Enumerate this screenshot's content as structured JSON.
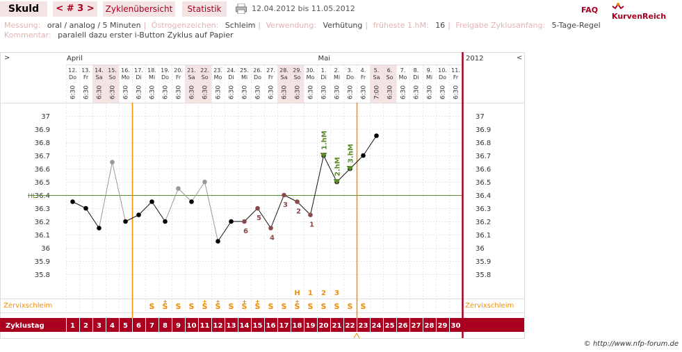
{
  "header": {
    "name": "Skuld",
    "cycle_nav": "< # 3 >",
    "tab_overview": "Zyklenübersicht",
    "tab_stats": "Statistik",
    "date_range": "12.04.2012 bis 11.05.2012",
    "faq": "FAQ",
    "brand": "KurvenReich"
  },
  "info": {
    "messung_label": "Messung:",
    "messung_value": "oral / analog / 5 Minuten",
    "oestrogen_label": "Östrogenzeichen:",
    "oestrogen_value": "Schleim",
    "verwendung_label": "Verwendung:",
    "verwendung_value": "Verhütung",
    "fruehste_label": "früheste 1.hM:",
    "fruehste_value": "16",
    "freigabe_label": "Freigabe Zyklusanfang:",
    "freigabe_value": "5-Tage-Regel",
    "kommentar_label": "Kommentar:",
    "kommentar_value": "paralell dazu erster i-Button Zyklus auf Papier"
  },
  "colors": {
    "accent": "#a8001e",
    "orange": "#f08c00",
    "green": "#5a8a2a",
    "weekend_bg": "#f4e3e3",
    "point_black": "#000000",
    "point_gray": "#999999",
    "point_maroon": "#8a4a4a"
  },
  "chart_data": {
    "type": "line",
    "nav_left": ">",
    "nav_right": "<",
    "month_labels": [
      "April",
      "Mai"
    ],
    "year_label": "2012",
    "dates": [
      "12.",
      "13.",
      "14.",
      "15.",
      "16.",
      "17.",
      "18.",
      "19.",
      "20.",
      "21.",
      "22.",
      "23.",
      "24.",
      "25.",
      "26.",
      "27.",
      "28.",
      "29.",
      "30.",
      "1.",
      "2.",
      "3.",
      "4.",
      "5.",
      "6.",
      "7.",
      "8.",
      "9.",
      "10.",
      "11."
    ],
    "weekdays": [
      "Do",
      "Fr",
      "Sa",
      "So",
      "Mo",
      "Di",
      "Mi",
      "Do",
      "Fr",
      "Sa",
      "So",
      "Mo",
      "Di",
      "Mi",
      "Do",
      "Fr",
      "Sa",
      "So",
      "Mo",
      "Di",
      "Mi",
      "Do",
      "Fr",
      "Sa",
      "So",
      "Mo",
      "Di",
      "Mi",
      "Do",
      "Fr"
    ],
    "weekend": [
      false,
      false,
      true,
      true,
      false,
      false,
      false,
      false,
      false,
      true,
      true,
      false,
      false,
      false,
      false,
      false,
      true,
      true,
      false,
      false,
      false,
      false,
      false,
      true,
      true,
      false,
      false,
      false,
      false,
      false
    ],
    "times": [
      "6:30",
      "6:30",
      "6:30",
      "6:30",
      "6:30",
      "6:30",
      "6:30",
      "6:30",
      "6:30",
      "6:30",
      "6:30",
      "6:30",
      "6:30",
      "6:30",
      "6:30",
      "6:30",
      "6:30",
      "6:30",
      "6:30",
      "6:30",
      "6:30",
      "6:30",
      "6:30",
      "7:00",
      "6:30",
      "6:30",
      "6:30",
      "6:30",
      "6:30",
      "6:30"
    ],
    "cycle_days": [
      "1",
      "2",
      "3",
      "4",
      "5",
      "6",
      "7",
      "8",
      "9",
      "10",
      "11",
      "12",
      "13",
      "14",
      "15",
      "16",
      "17",
      "18",
      "19",
      "20",
      "21",
      "22",
      "23",
      "24",
      "25",
      "26",
      "27",
      "28",
      "29",
      "30"
    ],
    "temperatures": [
      36.35,
      36.3,
      36.15,
      36.65,
      36.2,
      36.25,
      36.35,
      36.2,
      36.45,
      36.35,
      36.5,
      36.05,
      36.2,
      36.2,
      36.3,
      36.15,
      36.4,
      36.35,
      36.25,
      36.7,
      36.5,
      36.6,
      36.7,
      36.85,
      null,
      null,
      null,
      null,
      null,
      null
    ],
    "point_status": [
      "normal",
      "normal",
      "normal",
      "excluded",
      "normal",
      "normal",
      "normal",
      "normal",
      "excluded",
      "normal",
      "excluded",
      "normal",
      "normal",
      "lower",
      "lower",
      "lower",
      "lower",
      "lower",
      "lower",
      "normal",
      "normal",
      "normal",
      "normal",
      "normal",
      null,
      null,
      null,
      null,
      null,
      null
    ],
    "low_count_labels": {
      "13": "6",
      "14": "5",
      "15": "4",
      "16": "3",
      "17": "2",
      "18": "1"
    },
    "higher_markers": [
      {
        "day_index": 19,
        "label": "1.hM"
      },
      {
        "day_index": 20,
        "label": "2.hM"
      },
      {
        "day_index": 21,
        "label": "3.hM"
      }
    ],
    "coverline": 36.4,
    "coverline_label": "HL",
    "ylim": [
      35.8,
      37.0
    ],
    "yticks": [
      "37",
      "36.9",
      "36.8",
      "36.7",
      "36.6",
      "36.5",
      "36.4",
      "36.3",
      "36.2",
      "36.1",
      "36",
      "35.9",
      "35.8"
    ],
    "zervix_label": "Zervixschleim",
    "zervix": [
      "",
      "",
      "",
      "",
      "",
      "",
      "S",
      "S+",
      "S",
      "S",
      "S+",
      "S+",
      "S",
      "S+",
      "S+",
      "S",
      "S",
      "S+",
      "S",
      "S",
      "S",
      "S",
      "S",
      "",
      "",
      "",
      "",
      "",
      "",
      ""
    ],
    "zervix_peak_labels": {
      "17": "H",
      "18": "1",
      "19": "2",
      "20": "3"
    },
    "zyklustag_label": "Zyklustag",
    "orange_lines_after_day": [
      5,
      22
    ]
  },
  "footer": {
    "copyright": "© http://www.nfp-forum.de"
  }
}
